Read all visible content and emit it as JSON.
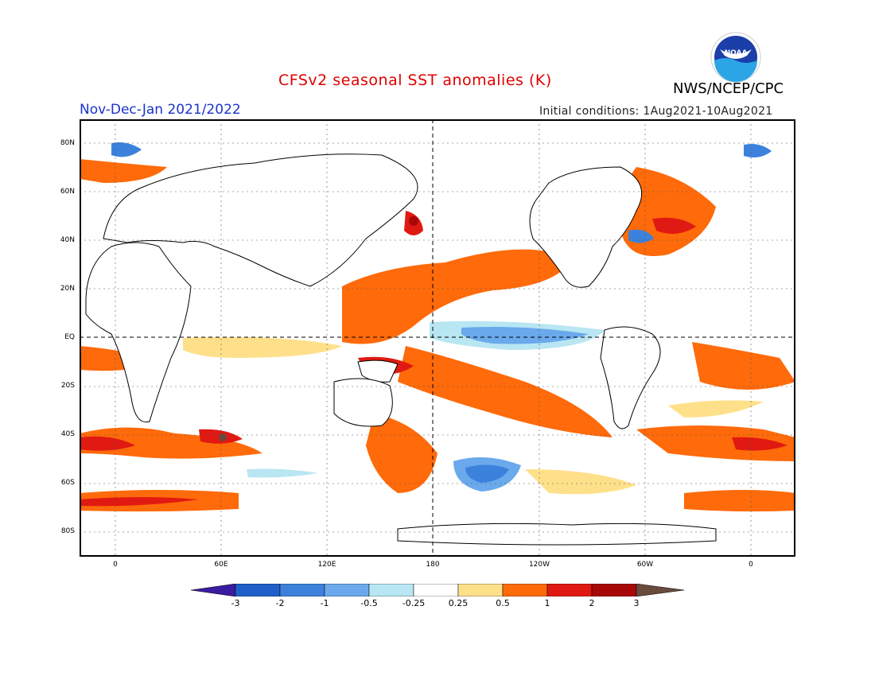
{
  "title": "CFSv2 seasonal SST anomalies (K)",
  "agency": "NWS/NCEP/CPC",
  "logo": {
    "text": "NOAA",
    "icon": "noaa-logo-icon"
  },
  "period": "Nov-Dec-Jan 2021/2022",
  "initial_conditions": "Initial conditions: 1Aug2021-10Aug2021",
  "map": {
    "lat_labels": [
      "80N",
      "60N",
      "40N",
      "20N",
      "EQ",
      "20S",
      "40S",
      "60S",
      "80S"
    ],
    "lon_labels": [
      "0",
      "60E",
      "120E",
      "180",
      "120W",
      "60W",
      "0"
    ]
  },
  "colorbar": {
    "labels": [
      "-3",
      "-2",
      "-1",
      "-0.5",
      "-0.25",
      "0.25",
      "0.5",
      "1",
      "2",
      "3"
    ],
    "colors": [
      "#3a1ca0",
      "#1f5fc8",
      "#3c82dc",
      "#6aa9ec",
      "#b8e6f2",
      "#ffffff",
      "#ffe08a",
      "#ff6a0a",
      "#e01a12",
      "#a80808",
      "#6a4a3c"
    ]
  }
}
